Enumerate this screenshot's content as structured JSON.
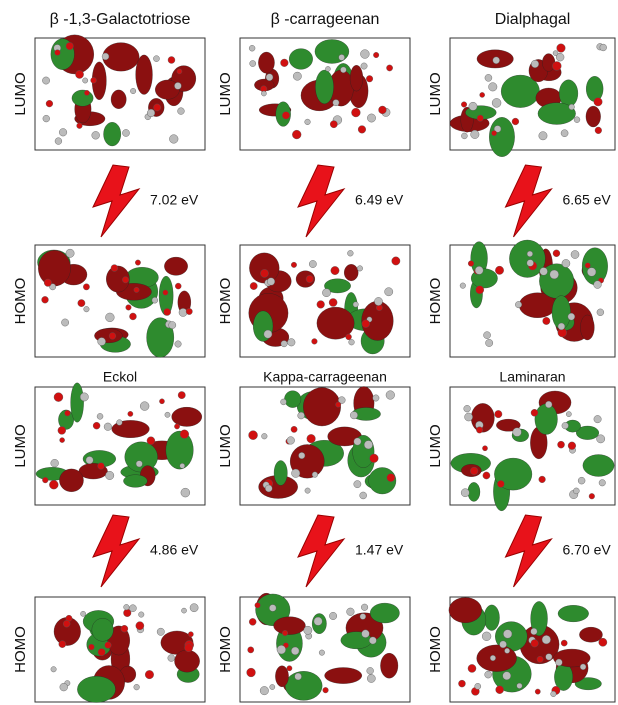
{
  "orbital_labels": {
    "lumo": "LUMO",
    "homo": "HOMO"
  },
  "molecules": [
    {
      "name": "β -1,3-Galactotriose",
      "gap": "7.02 eV"
    },
    {
      "name": "β -carrageenan",
      "gap": "6.49 eV"
    },
    {
      "name": "Dialphagal",
      "gap": "6.65 eV"
    },
    {
      "name": "Eckol",
      "gap": "4.86 eV"
    },
    {
      "name": "Kappa-carrageenan",
      "gap": "1.47 eV"
    },
    {
      "name": "Laminaran",
      "gap": "6.70 eV"
    }
  ]
}
